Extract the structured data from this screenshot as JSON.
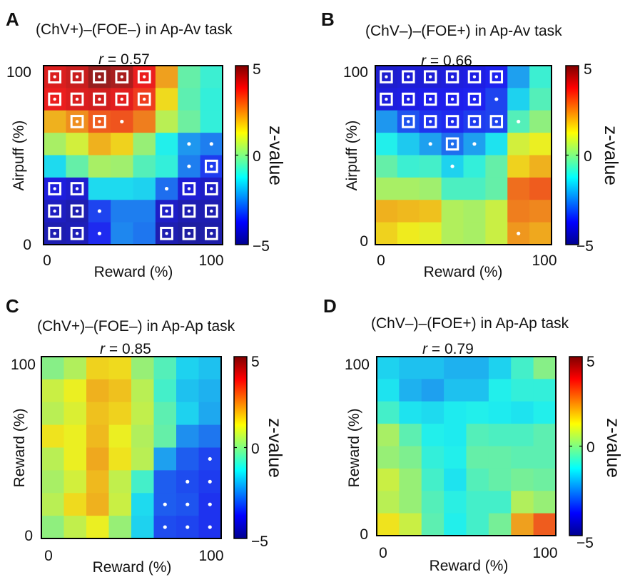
{
  "colorbar": {
    "label": "z-value",
    "max_label": "5",
    "mid_label": "0",
    "min_label": "−5",
    "range": [
      -5,
      5
    ],
    "colormap": "jet"
  },
  "chart_data": [
    {
      "type": "heatmap",
      "panel_letter": "A",
      "title": "(ChV+)–(FOE–) in Ap-Av task",
      "r_label": "r",
      "r_value": "= 0.57",
      "xlabel": "Reward (%)",
      "ylabel": "Airpuff (%)",
      "x_ticks": [
        "0",
        "100"
      ],
      "y_ticks": [
        "0",
        "100"
      ],
      "zlim": [
        -5,
        5
      ],
      "rows_top_to_bottom": [
        [
          4,
          4.2,
          4.8,
          4.6,
          3.8,
          2.2,
          -0.4,
          -0.9
        ],
        [
          3.8,
          4,
          4.1,
          3.9,
          3.4,
          1.5,
          -0.5,
          -1
        ],
        [
          2,
          2.4,
          3,
          3.1,
          2.6,
          0.6,
          -0.3,
          -1
        ],
        [
          0.4,
          0.9,
          2,
          1.6,
          0.2,
          -1.2,
          -2.3,
          -2.6
        ],
        [
          -1.5,
          -0.4,
          0.4,
          0.3,
          -0.6,
          -1,
          -2.6,
          -3.4
        ],
        [
          -4,
          -4.2,
          -1.5,
          -1.5,
          -1.6,
          -2.8,
          -4.1,
          -4.3
        ],
        [
          -4.4,
          -4.6,
          -3.3,
          -2.6,
          -2.6,
          -4.3,
          -4.6,
          -4.6
        ],
        [
          -4.6,
          -4.5,
          -3.6,
          -2.5,
          -2.7,
          -4.6,
          -4.8,
          -4.7
        ]
      ],
      "square_marker_cells": [
        [
          0,
          0
        ],
        [
          0,
          1
        ],
        [
          0,
          2
        ],
        [
          0,
          3
        ],
        [
          0,
          4
        ],
        [
          1,
          0
        ],
        [
          1,
          1
        ],
        [
          1,
          2
        ],
        [
          1,
          3
        ],
        [
          1,
          4
        ],
        [
          2,
          1
        ],
        [
          2,
          2
        ],
        [
          4,
          7
        ],
        [
          5,
          0
        ],
        [
          5,
          1
        ],
        [
          5,
          6
        ],
        [
          5,
          7
        ],
        [
          6,
          0
        ],
        [
          6,
          1
        ],
        [
          6,
          5
        ],
        [
          6,
          6
        ],
        [
          6,
          7
        ],
        [
          7,
          0
        ],
        [
          7,
          1
        ],
        [
          7,
          5
        ],
        [
          7,
          6
        ],
        [
          7,
          7
        ]
      ],
      "dot_marker_cells": [
        [
          2,
          3
        ],
        [
          3,
          6
        ],
        [
          3,
          7
        ],
        [
          4,
          6
        ],
        [
          5,
          5
        ],
        [
          6,
          2
        ],
        [
          7,
          2
        ]
      ]
    },
    {
      "type": "heatmap",
      "panel_letter": "B",
      "title": "(ChV–)–(FOE+) in Ap-Av task",
      "r_label": "r",
      "r_value": "= 0.66",
      "xlabel": "Reward (%)",
      "ylabel": "Airpuff (%)",
      "x_ticks": [
        "0",
        "100"
      ],
      "y_ticks": [
        "0",
        "100"
      ],
      "zlim": [
        -5,
        5
      ],
      "rows_top_to_bottom": [
        [
          -4.2,
          -4.1,
          -4.1,
          -4,
          -3.9,
          -3.7,
          -2.2,
          -0.9
        ],
        [
          -4,
          -3.9,
          -3.8,
          -3.8,
          -3.7,
          -3.3,
          -1.6,
          -0.6
        ],
        [
          -2.3,
          -3.1,
          -3.5,
          -3.6,
          -3.4,
          -3.3,
          -0.6,
          0.1
        ],
        [
          -1.2,
          -1.7,
          -2.2,
          -2.8,
          -2.2,
          -1.4,
          0.9,
          1.2
        ],
        [
          -0.4,
          -0.9,
          -0.8,
          -1.6,
          -1,
          -0.4,
          1.6,
          2
        ],
        [
          0.4,
          0.4,
          0.3,
          -0.7,
          -0.7,
          -0.4,
          2.8,
          3
        ],
        [
          2,
          1.9,
          1.8,
          0.5,
          0.4,
          0.8,
          2.6,
          2.5
        ],
        [
          1.6,
          1.3,
          1.1,
          0.5,
          0.4,
          0.8,
          2.3,
          2.1
        ]
      ],
      "square_marker_cells": [
        [
          0,
          0
        ],
        [
          0,
          1
        ],
        [
          0,
          2
        ],
        [
          0,
          3
        ],
        [
          0,
          4
        ],
        [
          0,
          5
        ],
        [
          1,
          0
        ],
        [
          1,
          1
        ],
        [
          1,
          2
        ],
        [
          1,
          3
        ],
        [
          1,
          4
        ],
        [
          2,
          1
        ],
        [
          2,
          2
        ],
        [
          2,
          3
        ],
        [
          2,
          4
        ],
        [
          2,
          5
        ],
        [
          3,
          3
        ]
      ],
      "dot_marker_cells": [
        [
          1,
          5
        ],
        [
          2,
          6
        ],
        [
          3,
          2
        ],
        [
          3,
          4
        ],
        [
          4,
          3
        ],
        [
          7,
          6
        ]
      ]
    },
    {
      "type": "heatmap",
      "panel_letter": "C",
      "title": "(ChV+)–(FOE–) in Ap-Ap task",
      "r_label": "r",
      "r_value": "= 0.85",
      "xlabel": "Reward (%)",
      "ylabel": "Reward (%)",
      "x_ticks": [
        "0",
        "100"
      ],
      "y_ticks": [
        "0",
        "100"
      ],
      "zlim": [
        -5,
        5
      ],
      "rows_top_to_bottom": [
        [
          0,
          0.5,
          1.6,
          1.5,
          0.2,
          -0.6,
          -1.6,
          -1.8
        ],
        [
          0.8,
          1.2,
          2,
          1.8,
          0.6,
          -0.8,
          -1.8,
          -2
        ],
        [
          0.6,
          1,
          1.8,
          1.6,
          0.7,
          -0.5,
          -1.6,
          -2.1
        ],
        [
          1.4,
          1.2,
          1.9,
          1.2,
          0.5,
          -0.4,
          -2.4,
          -2.7
        ],
        [
          0.6,
          1.2,
          2.1,
          1.4,
          0.6,
          -2.2,
          -3,
          -3.3
        ],
        [
          0.4,
          0.9,
          1.9,
          0.7,
          -0.8,
          -3,
          -3.2,
          -3.4
        ],
        [
          0.6,
          1.5,
          2,
          0.8,
          -1.5,
          -3,
          -3.1,
          -3.5
        ],
        [
          0.1,
          0.7,
          1.2,
          0.2,
          -1.6,
          -3.2,
          -3.3,
          -3.5
        ]
      ],
      "square_marker_cells": [],
      "dot_marker_cells": [
        [
          4,
          7
        ],
        [
          5,
          6
        ],
        [
          5,
          7
        ],
        [
          6,
          5
        ],
        [
          6,
          6
        ],
        [
          6,
          7
        ],
        [
          7,
          5
        ],
        [
          7,
          6
        ],
        [
          7,
          7
        ]
      ]
    },
    {
      "type": "heatmap",
      "panel_letter": "D",
      "title": "(ChV–)–(FOE+) in Ap-Ap task",
      "r_label": "r",
      "r_value": "= 0.79",
      "xlabel": "Reward (%)",
      "ylabel": "Reward (%)",
      "x_ticks": [
        "0",
        "100"
      ],
      "y_ticks": [
        "0",
        "100"
      ],
      "zlim": [
        -5,
        5
      ],
      "rows_top_to_bottom": [
        [
          -1.6,
          -1.8,
          -1.8,
          -2,
          -2,
          -1.6,
          -0.8,
          0
        ],
        [
          -1.4,
          -2,
          -2.2,
          -1.8,
          -1.8,
          -1.2,
          -1,
          -1
        ],
        [
          -0.8,
          -1.4,
          -1.5,
          -1.3,
          -1.2,
          -1.3,
          -1.4,
          -1.2
        ],
        [
          0.4,
          -0.5,
          -1.2,
          -1.3,
          -0.6,
          -0.7,
          -0.7,
          -0.5
        ],
        [
          0.2,
          -0.1,
          -1,
          -1.2,
          -0.4,
          -0.4,
          -0.5,
          -0.5
        ],
        [
          0.8,
          0.2,
          -0.8,
          -1.4,
          -0.6,
          -0.4,
          -0.2,
          -0.3
        ],
        [
          0.6,
          0.2,
          -0.6,
          -1.1,
          -0.8,
          -0.8,
          0.5,
          0.2
        ],
        [
          1.4,
          0.8,
          -0.5,
          -1.2,
          -0.8,
          -0.2,
          2.2,
          3
        ]
      ],
      "square_marker_cells": [],
      "dot_marker_cells": []
    }
  ]
}
